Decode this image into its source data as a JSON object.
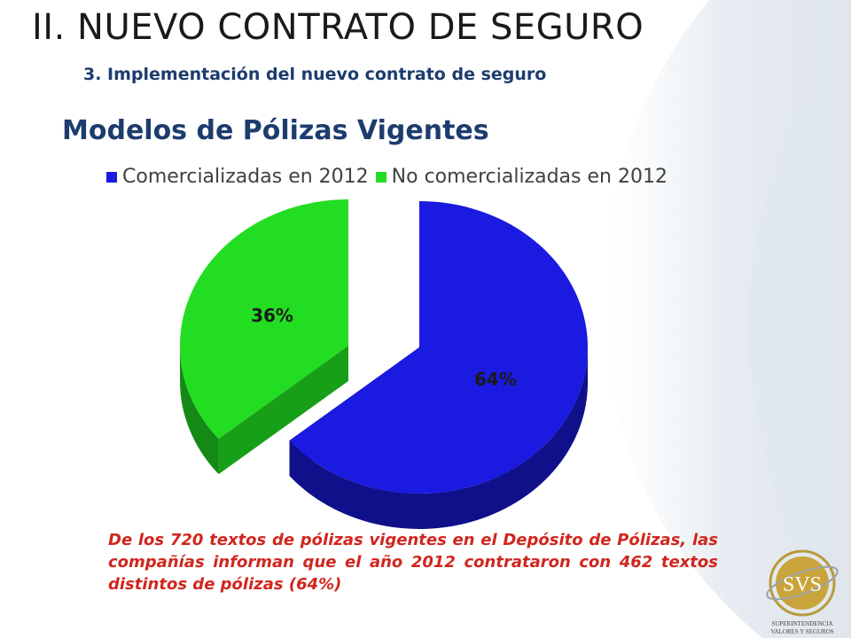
{
  "slide": {
    "title": "II.  NUEVO CONTRATO DE SEGURO",
    "subtitle": "3. Implementación del nuevo contrato de seguro"
  },
  "chart_data": {
    "type": "pie",
    "title": "Modelos de Pólizas Vigentes",
    "categories": [
      "Comercializadas en 2012",
      "No comercializadas en 2012"
    ],
    "values": [
      64,
      36
    ],
    "data_labels": [
      "64%",
      "36%"
    ],
    "colors": [
      "#1a1ae0",
      "#22dd22"
    ],
    "legend_position": "top",
    "style": "3d-exploded"
  },
  "footnote": "De los 720 textos de pólizas vigentes en el Depósito de Pólizas, las compañías informan que el año 2012 contrataron con  462 textos distintos de pólizas (64%)",
  "logo": {
    "text": "SVS",
    "caption": [
      "SUPERINTENDENCIA",
      "VALORES Y SEGUROS"
    ],
    "colors": {
      "ring": "#b89a3c",
      "disc": "#c9a43a"
    }
  }
}
